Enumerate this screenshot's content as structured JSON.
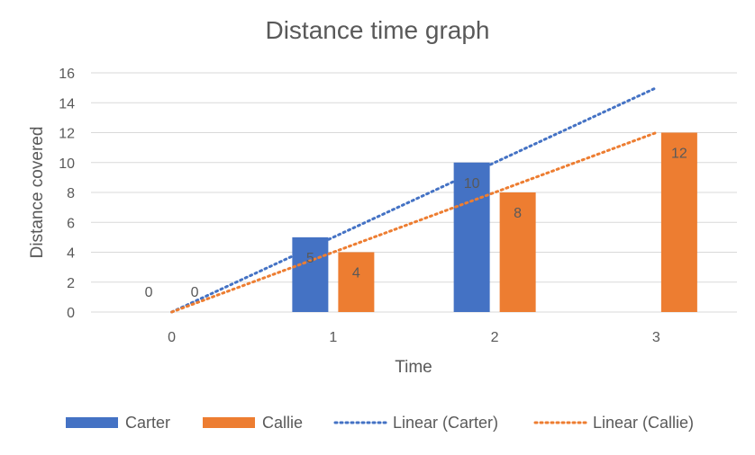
{
  "chart_data": {
    "type": "bar",
    "title": "Distance time graph",
    "xlabel": "Time",
    "ylabel": "Distance covered",
    "categories": [
      "0",
      "1",
      "2",
      "3"
    ],
    "ylim": [
      0,
      16
    ],
    "yticks": [
      "0",
      "2",
      "4",
      "6",
      "8",
      "10",
      "12",
      "14",
      "16"
    ],
    "grid": true,
    "legend_position": "bottom",
    "series": [
      {
        "name": "Carter",
        "values": [
          0,
          5,
          10,
          null
        ],
        "color": "#4472C4"
      },
      {
        "name": "Callie",
        "values": [
          0,
          4,
          8,
          12
        ],
        "color": "#ED7D31"
      }
    ],
    "trendlines": [
      {
        "name": "Linear (Carter)",
        "type": "linear",
        "start": 0,
        "end": 15,
        "color": "#4472C4"
      },
      {
        "name": "Linear (Callie)",
        "type": "linear",
        "start": 0,
        "end": 12,
        "color": "#ED7D31"
      }
    ]
  }
}
